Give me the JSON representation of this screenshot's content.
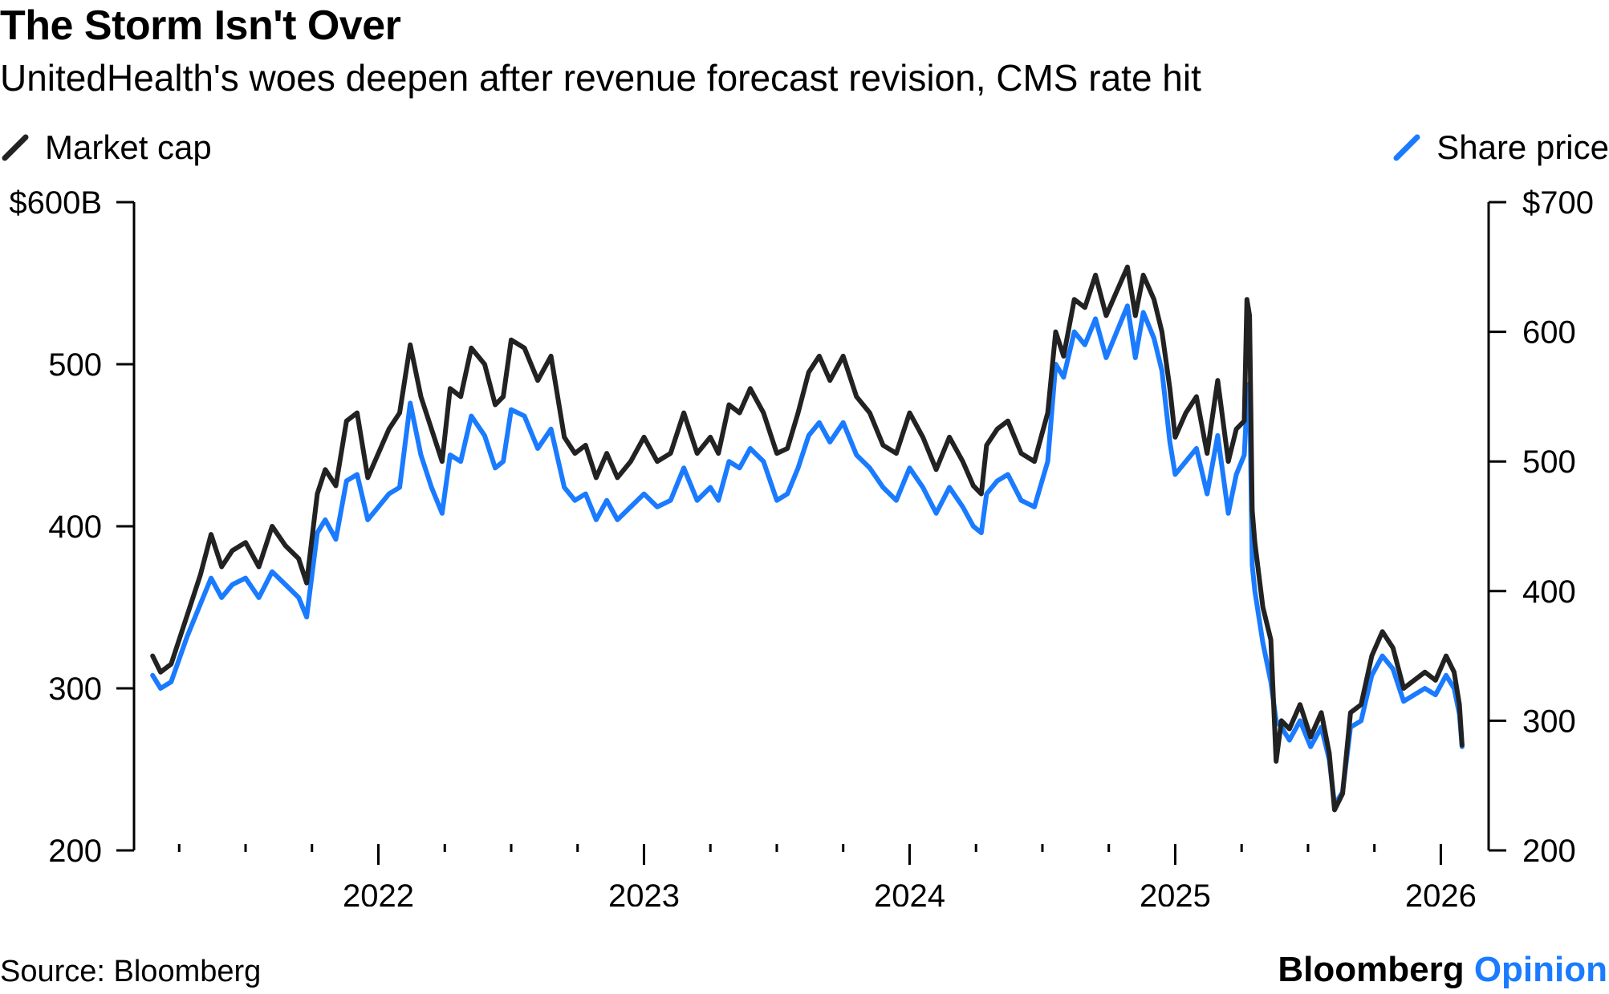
{
  "header": {
    "title": "The Storm Isn't Over",
    "subtitle": "UnitedHealth's woes deepen after revenue forecast revision, CMS rate hit"
  },
  "legend": {
    "left_label": "Market cap",
    "right_label": "Share price"
  },
  "footer": {
    "source": "Source: Bloomberg",
    "brand_1": "Bloomberg",
    "brand_2": "Opinion"
  },
  "colors": {
    "market_cap": "#222222",
    "share_price": "#1a7bff",
    "axis": "#000000"
  },
  "chart_data": {
    "type": "line",
    "title": "The Storm Isn't Over",
    "subtitle": "UnitedHealth's woes deepen after revenue forecast revision, CMS rate hit",
    "x_range": [
      2021.08,
      2026.18
    ],
    "x_ticks": [
      2022,
      2023,
      2024,
      2025,
      2026
    ],
    "x_tick_labels": [
      "2022",
      "2023",
      "2024",
      "2025",
      "2026"
    ],
    "x_minor_ticks": [
      2021.25,
      2021.5,
      2021.75,
      2022.25,
      2022.5,
      2022.75,
      2023.25,
      2023.5,
      2023.75,
      2024.25,
      2024.5,
      2024.75,
      2025.25,
      2025.5,
      2025.75
    ],
    "left_axis": {
      "name": "Market cap",
      "ylim": [
        200,
        600
      ],
      "ticks": [
        200,
        300,
        400,
        500,
        600
      ],
      "tick_labels": [
        "200",
        "300",
        "400",
        "500",
        "$600B"
      ]
    },
    "right_axis": {
      "name": "Share price",
      "ylim": [
        200,
        700
      ],
      "ticks": [
        200,
        300,
        400,
        500,
        600,
        700
      ],
      "tick_labels": [
        "200",
        "300",
        "400",
        "500",
        "600",
        "$700"
      ]
    },
    "series": [
      {
        "name": "Market cap",
        "axis": "left",
        "x": [
          2021.15,
          2021.18,
          2021.22,
          2021.28,
          2021.33,
          2021.37,
          2021.41,
          2021.45,
          2021.5,
          2021.55,
          2021.6,
          2021.65,
          2021.7,
          2021.73,
          2021.77,
          2021.8,
          2021.84,
          2021.88,
          2021.92,
          2021.96,
          2022.0,
          2022.04,
          2022.08,
          2022.12,
          2022.16,
          2022.2,
          2022.24,
          2022.27,
          2022.31,
          2022.35,
          2022.4,
          2022.44,
          2022.47,
          2022.5,
          2022.55,
          2022.6,
          2022.65,
          2022.7,
          2022.74,
          2022.78,
          2022.82,
          2022.86,
          2022.9,
          2022.95,
          2023.0,
          2023.05,
          2023.1,
          2023.15,
          2023.2,
          2023.25,
          2023.28,
          2023.32,
          2023.36,
          2023.4,
          2023.45,
          2023.5,
          2023.54,
          2023.58,
          2023.62,
          2023.66,
          2023.7,
          2023.75,
          2023.8,
          2023.85,
          2023.9,
          2023.95,
          2024.0,
          2024.05,
          2024.1,
          2024.15,
          2024.2,
          2024.24,
          2024.27,
          2024.29,
          2024.33,
          2024.37,
          2024.42,
          2024.47,
          2024.52,
          2024.55,
          2024.58,
          2024.62,
          2024.66,
          2024.7,
          2024.74,
          2024.78,
          2024.82,
          2024.85,
          2024.88,
          2024.92,
          2024.95,
          2024.98,
          2025.0,
          2025.04,
          2025.08,
          2025.12,
          2025.16,
          2025.2,
          2025.23,
          2025.26,
          2025.27,
          2025.28,
          2025.29,
          2025.3,
          2025.33,
          2025.36,
          2025.38,
          2025.4,
          2025.43,
          2025.47,
          2025.51,
          2025.55,
          2025.58,
          2025.6,
          2025.63,
          2025.66,
          2025.7,
          2025.74,
          2025.78,
          2025.82,
          2025.86,
          2025.9,
          2025.94,
          2025.98,
          2026.02,
          2026.05,
          2026.07,
          2026.08
        ],
        "y": [
          320,
          310,
          315,
          345,
          370,
          395,
          375,
          385,
          390,
          375,
          400,
          388,
          380,
          365,
          420,
          435,
          425,
          465,
          470,
          430,
          445,
          460,
          470,
          512,
          480,
          460,
          440,
          485,
          480,
          510,
          500,
          475,
          480,
          515,
          510,
          490,
          505,
          455,
          445,
          450,
          430,
          445,
          430,
          440,
          455,
          440,
          445,
          470,
          445,
          455,
          445,
          475,
          470,
          485,
          470,
          445,
          448,
          470,
          495,
          505,
          490,
          505,
          480,
          470,
          450,
          445,
          470,
          455,
          435,
          455,
          440,
          425,
          420,
          450,
          460,
          465,
          445,
          440,
          470,
          520,
          505,
          540,
          535,
          555,
          530,
          545,
          560,
          530,
          555,
          540,
          520,
          485,
          455,
          470,
          480,
          445,
          490,
          440,
          460,
          465,
          540,
          530,
          410,
          390,
          350,
          330,
          255,
          280,
          275,
          290,
          270,
          285,
          260,
          225,
          235,
          285,
          290,
          320,
          335,
          325,
          300,
          305,
          310,
          305,
          320,
          310,
          290,
          265
        ]
      },
      {
        "name": "Share price",
        "axis": "right",
        "x": [
          2021.15,
          2021.18,
          2021.22,
          2021.28,
          2021.33,
          2021.37,
          2021.41,
          2021.45,
          2021.5,
          2021.55,
          2021.6,
          2021.65,
          2021.7,
          2021.73,
          2021.77,
          2021.8,
          2021.84,
          2021.88,
          2021.92,
          2021.96,
          2022.0,
          2022.04,
          2022.08,
          2022.12,
          2022.16,
          2022.2,
          2022.24,
          2022.27,
          2022.31,
          2022.35,
          2022.4,
          2022.44,
          2022.47,
          2022.5,
          2022.55,
          2022.6,
          2022.65,
          2022.7,
          2022.74,
          2022.78,
          2022.82,
          2022.86,
          2022.9,
          2022.95,
          2023.0,
          2023.05,
          2023.1,
          2023.15,
          2023.2,
          2023.25,
          2023.28,
          2023.32,
          2023.36,
          2023.4,
          2023.45,
          2023.5,
          2023.54,
          2023.58,
          2023.62,
          2023.66,
          2023.7,
          2023.75,
          2023.8,
          2023.85,
          2023.9,
          2023.95,
          2024.0,
          2024.05,
          2024.1,
          2024.15,
          2024.2,
          2024.24,
          2024.27,
          2024.29,
          2024.33,
          2024.37,
          2024.42,
          2024.47,
          2024.52,
          2024.55,
          2024.58,
          2024.62,
          2024.66,
          2024.7,
          2024.74,
          2024.78,
          2024.82,
          2024.85,
          2024.88,
          2024.92,
          2024.95,
          2024.98,
          2025.0,
          2025.04,
          2025.08,
          2025.12,
          2025.16,
          2025.2,
          2025.23,
          2025.26,
          2025.27,
          2025.28,
          2025.29,
          2025.3,
          2025.33,
          2025.36,
          2025.38,
          2025.4,
          2025.43,
          2025.47,
          2025.51,
          2025.55,
          2025.58,
          2025.6,
          2025.63,
          2025.66,
          2025.7,
          2025.74,
          2025.78,
          2025.82,
          2025.86,
          2025.9,
          2025.94,
          2025.98,
          2026.02,
          2026.05,
          2026.07,
          2026.08
        ],
        "y": [
          335,
          325,
          330,
          365,
          390,
          410,
          395,
          405,
          410,
          395,
          415,
          405,
          395,
          380,
          445,
          455,
          440,
          485,
          490,
          455,
          465,
          475,
          480,
          545,
          505,
          480,
          460,
          505,
          500,
          535,
          520,
          495,
          500,
          540,
          535,
          510,
          525,
          480,
          470,
          475,
          455,
          470,
          455,
          465,
          475,
          465,
          470,
          495,
          470,
          480,
          470,
          500,
          495,
          510,
          500,
          470,
          475,
          495,
          520,
          530,
          515,
          530,
          505,
          495,
          480,
          470,
          495,
          480,
          460,
          480,
          465,
          450,
          445,
          475,
          485,
          490,
          470,
          465,
          500,
          575,
          565,
          600,
          590,
          610,
          580,
          600,
          620,
          580,
          615,
          595,
          570,
          515,
          490,
          500,
          510,
          475,
          520,
          460,
          490,
          505,
          545,
          560,
          420,
          400,
          360,
          330,
          300,
          295,
          285,
          300,
          280,
          295,
          270,
          235,
          245,
          295,
          300,
          335,
          350,
          340,
          315,
          320,
          325,
          320,
          335,
          325,
          305,
          280
        ]
      }
    ]
  }
}
